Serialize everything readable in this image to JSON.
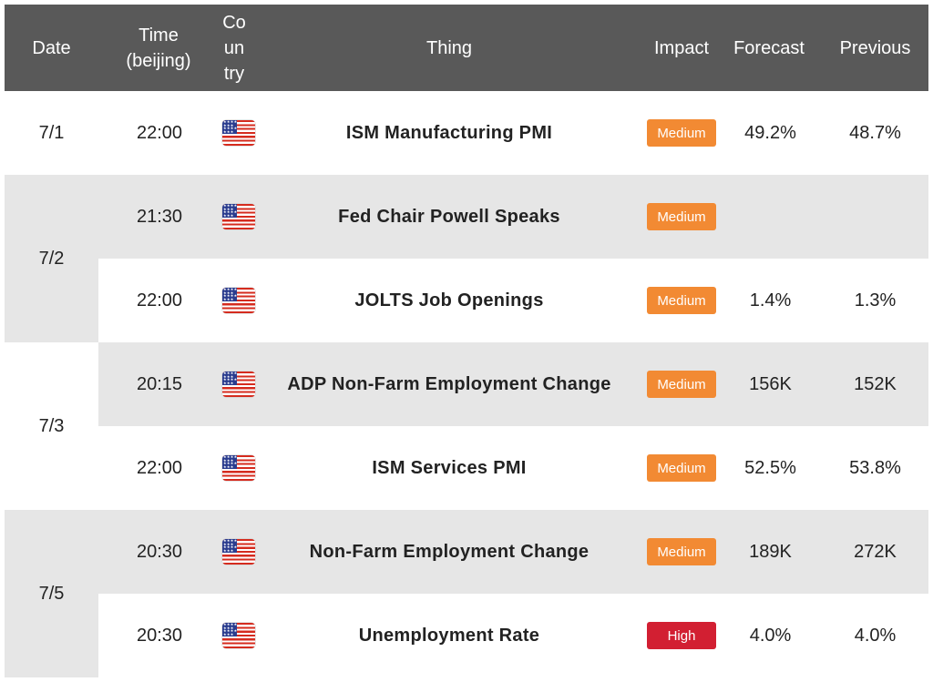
{
  "header": {
    "date": "Date",
    "time": "Time\n(beijing)",
    "country": "Co\nun\ntry",
    "thing": "Thing",
    "impact": "Impact",
    "forecast": "Forecast",
    "previous": "Previous"
  },
  "colors": {
    "header_bg": "#595959",
    "band_gray": "#e6e6e6",
    "medium": "#f28a33",
    "high": "#d21f32"
  },
  "groups": [
    {
      "date": "7/1",
      "events": [
        {
          "time": "22:00",
          "country_icon": "us-flag-icon",
          "thing": "ISM Manufacturing PMI",
          "impact": "Medium",
          "forecast": "49.2%",
          "previous": "48.7%"
        }
      ]
    },
    {
      "date": "7/2",
      "events": [
        {
          "time": "21:30",
          "country_icon": "us-flag-icon",
          "thing": "Fed Chair Powell Speaks",
          "impact": "Medium",
          "forecast": "",
          "previous": ""
        },
        {
          "time": "22:00",
          "country_icon": "us-flag-icon",
          "thing": "JOLTS Job Openings",
          "impact": "Medium",
          "forecast": "1.4%",
          "previous": "1.3%"
        }
      ]
    },
    {
      "date": "7/3",
      "events": [
        {
          "time": "20:15",
          "country_icon": "us-flag-icon",
          "thing": "ADP Non-Farm Employment Change",
          "impact": "Medium",
          "forecast": "156K",
          "previous": "152K"
        },
        {
          "time": "22:00",
          "country_icon": "us-flag-icon",
          "thing": "ISM Services PMI",
          "impact": "Medium",
          "forecast": "52.5%",
          "previous": "53.8%"
        }
      ]
    },
    {
      "date": "7/5",
      "events": [
        {
          "time": "20:30",
          "country_icon": "us-flag-icon",
          "thing": "Non-Farm Employment Change",
          "impact": "Medium",
          "forecast": "189K",
          "previous": "272K"
        },
        {
          "time": "20:30",
          "country_icon": "us-flag-icon",
          "thing": "Unemployment Rate",
          "impact": "High",
          "forecast": "4.0%",
          "previous": "4.0%"
        }
      ]
    }
  ]
}
